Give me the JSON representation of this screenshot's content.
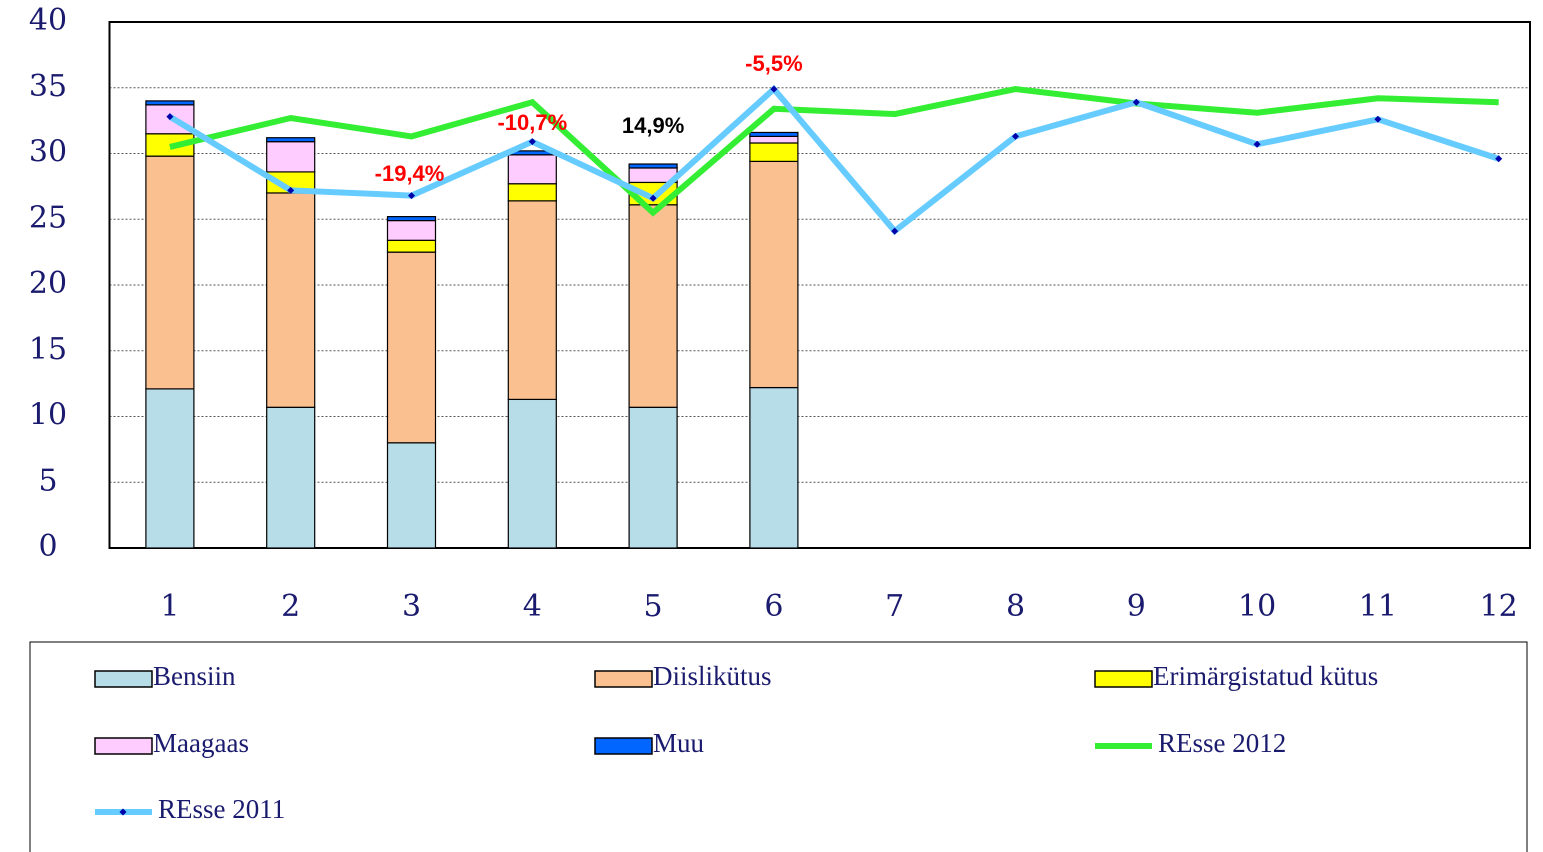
{
  "chart_data": {
    "type": "bar",
    "stacked": true,
    "categories": [
      "1",
      "2",
      "3",
      "4",
      "5",
      "6",
      "7",
      "8",
      "9",
      "10",
      "11",
      "12"
    ],
    "ylim": [
      0,
      40
    ],
    "yticks": [
      0,
      5,
      10,
      15,
      20,
      25,
      30,
      35,
      40
    ],
    "grid": true,
    "series": [
      {
        "name": "Bensiin",
        "type": "bar",
        "color": "#b7dde8",
        "values": [
          12.1,
          10.7,
          8.0,
          11.3,
          10.7,
          12.2,
          null,
          null,
          null,
          null,
          null,
          null
        ]
      },
      {
        "name": "Diislikütus",
        "type": "bar",
        "color": "#fac090",
        "values": [
          17.7,
          16.3,
          14.5,
          15.1,
          15.4,
          17.2,
          null,
          null,
          null,
          null,
          null,
          null
        ]
      },
      {
        "name": "Erimärgistatud kütus",
        "type": "bar",
        "color": "#ffff00",
        "values": [
          1.7,
          1.6,
          0.9,
          1.3,
          1.7,
          1.4,
          null,
          null,
          null,
          null,
          null,
          null
        ]
      },
      {
        "name": "Maagaas",
        "type": "bar",
        "color": "#ffccff",
        "values": [
          2.2,
          2.3,
          1.5,
          2.2,
          1.1,
          0.5,
          null,
          null,
          null,
          null,
          null,
          null
        ]
      },
      {
        "name": "Muu",
        "type": "bar",
        "color": "#0066ff",
        "values": [
          0.3,
          0.3,
          0.3,
          0.3,
          0.3,
          0.3,
          null,
          null,
          null,
          null,
          null,
          null
        ]
      },
      {
        "name": "REsse 2012",
        "type": "line",
        "color": "#33ee33",
        "values": [
          30.5,
          32.7,
          31.3,
          33.9,
          25.5,
          33.4,
          33.0,
          34.9,
          33.8,
          33.1,
          34.2,
          33.9
        ]
      },
      {
        "name": "REsse 2011",
        "type": "line",
        "color": "#66ccff",
        "marker_color": "#0000aa",
        "values": [
          32.8,
          27.2,
          26.8,
          30.9,
          26.6,
          34.9,
          24.1,
          31.3,
          33.9,
          30.7,
          32.6,
          29.6
        ]
      }
    ],
    "annotations": [
      {
        "x": "3",
        "text": "-19,4%",
        "color": "#ff0000"
      },
      {
        "x": "4",
        "text": "-10,7%",
        "color": "#ff0000"
      },
      {
        "x": "5",
        "text": "14,9%",
        "color": "#000000"
      },
      {
        "x": "6",
        "text": "-5,5%",
        "color": "#ff0000"
      }
    ],
    "legend": "bottom"
  }
}
